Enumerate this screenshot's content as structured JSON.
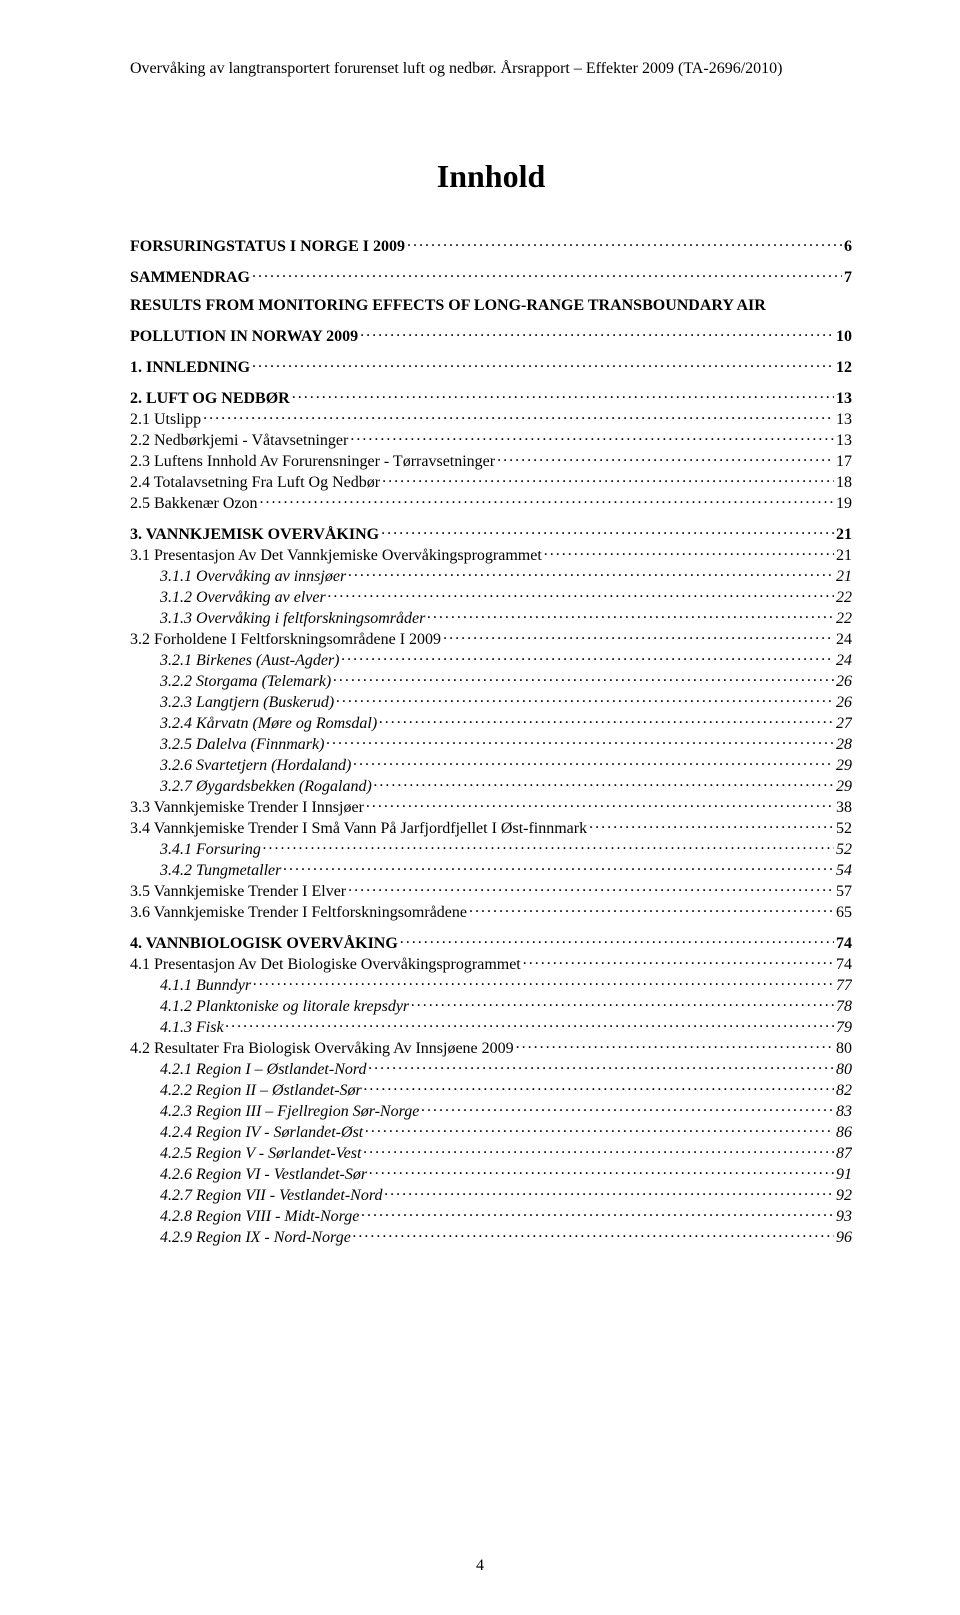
{
  "running_header": "Overvåking av langtransportert forurenset luft og nedbør. Årsrapport – Effekter 2009 (TA-2696/2010)",
  "title": "Innhold",
  "page_number": "4",
  "toc": [
    {
      "level": 0,
      "label": "FORSURINGSTATUS I NORGE I 2009",
      "page": "6"
    },
    {
      "level": 0,
      "label": "SAMMENDRAG",
      "page": "7"
    },
    {
      "level": 0,
      "label": "RESULTS FROM MONITORING EFFECTS OF LONG-RANGE TRANSBOUNDARY AIR POLLUTION IN NORWAY 2009",
      "page": "10",
      "wrap": true
    },
    {
      "level": 0,
      "label": "1. INNLEDNING",
      "page": "12"
    },
    {
      "level": 0,
      "label": "2. LUFT OG NEDBØR",
      "page": "13"
    },
    {
      "level": 1,
      "label": "2.1 UTSLIPP",
      "page": "13",
      "smallcaps": true
    },
    {
      "level": 1,
      "label": "2.2 NEDBØRKJEMI - VÅTAVSETNINGER",
      "page": "13",
      "smallcaps": true
    },
    {
      "level": 1,
      "label": "2.3 LUFTENS INNHOLD AV FORURENSNINGER - TØRRAVSETNINGER",
      "page": "17",
      "smallcaps": true
    },
    {
      "level": 1,
      "label": "2.4 TOTALAVSETNING FRA LUFT OG NEDBØR",
      "page": "18",
      "smallcaps": true
    },
    {
      "level": 1,
      "label": "2.5 BAKKENÆR OZON",
      "page": "19",
      "smallcaps": true
    },
    {
      "level": 0,
      "label": "3. VANNKJEMISK OVERVÅKING",
      "page": "21"
    },
    {
      "level": 1,
      "label": "3.1 PRESENTASJON AV DET VANNKJEMISKE OVERVÅKINGSPROGRAMMET",
      "page": "21",
      "smallcaps": true
    },
    {
      "level": 2,
      "label": "3.1.1 Overvåking av innsjøer",
      "page": "21"
    },
    {
      "level": 2,
      "label": "3.1.2 Overvåking av elver",
      "page": "22"
    },
    {
      "level": 2,
      "label": "3.1.3 Overvåking i feltforskningsområder",
      "page": "22"
    },
    {
      "level": 1,
      "label": "3.2 FORHOLDENE I FELTFORSKNINGSOMRÅDENE I 2009",
      "page": "24",
      "smallcaps": true
    },
    {
      "level": 2,
      "label": "3.2.1 Birkenes (Aust-Agder)",
      "page": "24"
    },
    {
      "level": 2,
      "label": "3.2.2 Storgama (Telemark)",
      "page": "26"
    },
    {
      "level": 2,
      "label": "3.2.3 Langtjern (Buskerud)",
      "page": "26"
    },
    {
      "level": 2,
      "label": "3.2.4 Kårvatn (Møre og Romsdal)",
      "page": "27"
    },
    {
      "level": 2,
      "label": "3.2.5 Dalelva (Finnmark)",
      "page": "28"
    },
    {
      "level": 2,
      "label": "3.2.6 Svartetjern (Hordaland)",
      "page": "29"
    },
    {
      "level": 2,
      "label": "3.2.7 Øygardsbekken (Rogaland)",
      "page": "29"
    },
    {
      "level": 1,
      "label": "3.3 VANNKJEMISKE TRENDER I INNSJØER",
      "page": "38",
      "smallcaps": true
    },
    {
      "level": 1,
      "label": "3.4 VANNKJEMISKE TRENDER I SMÅ VANN PÅ JARFJORDFJELLET I ØST-FINNMARK",
      "page": "52",
      "smallcaps": true
    },
    {
      "level": 2,
      "label": "3.4.1 Forsuring",
      "page": "52"
    },
    {
      "level": 2,
      "label": "3.4.2 Tungmetaller",
      "page": "54"
    },
    {
      "level": 1,
      "label": "3.5 VANNKJEMISKE TRENDER I ELVER",
      "page": "57",
      "smallcaps": true
    },
    {
      "level": 1,
      "label": "3.6 VANNKJEMISKE TRENDER I FELTFORSKNINGSOMRÅDENE",
      "page": "65",
      "smallcaps": true
    },
    {
      "level": 0,
      "label": "4. VANNBIOLOGISK OVERVÅKING",
      "page": "74"
    },
    {
      "level": 1,
      "label": "4.1 PRESENTASJON AV DET BIOLOGISKE OVERVÅKINGSPROGRAMMET",
      "page": "74",
      "smallcaps": true
    },
    {
      "level": 2,
      "label": "4.1.1 Bunndyr",
      "page": "77"
    },
    {
      "level": 2,
      "label": "4.1.2 Planktoniske og litorale krepsdyr",
      "page": "78"
    },
    {
      "level": 2,
      "label": "4.1.3 Fisk",
      "page": "79"
    },
    {
      "level": 1,
      "label": "4.2 RESULTATER FRA BIOLOGISK OVERVÅKING AV INNSJØENE 2009",
      "page": "80",
      "smallcaps": true
    },
    {
      "level": 2,
      "label": "4.2.1 Region I – Østlandet-Nord",
      "page": "80"
    },
    {
      "level": 2,
      "label": "4.2.2 Region II – Østlandet-Sør",
      "page": "82"
    },
    {
      "level": 2,
      "label": "4.2.3 Region III – Fjellregion Sør-Norge",
      "page": "83"
    },
    {
      "level": 2,
      "label": "4.2.4 Region IV - Sørlandet-Øst",
      "page": "86"
    },
    {
      "level": 2,
      "label": "4.2.5 Region V - Sørlandet-Vest",
      "page": "87"
    },
    {
      "level": 2,
      "label": "4.2.6 Region VI - Vestlandet-Sør",
      "page": "91"
    },
    {
      "level": 2,
      "label": "4.2.7 Region VII - Vestlandet-Nord",
      "page": "92"
    },
    {
      "level": 2,
      "label": "4.2.8 Region VIII - Midt-Norge",
      "page": "93"
    },
    {
      "level": 2,
      "label": "4.2.9 Region IX - Nord-Norge",
      "page": "96"
    }
  ]
}
